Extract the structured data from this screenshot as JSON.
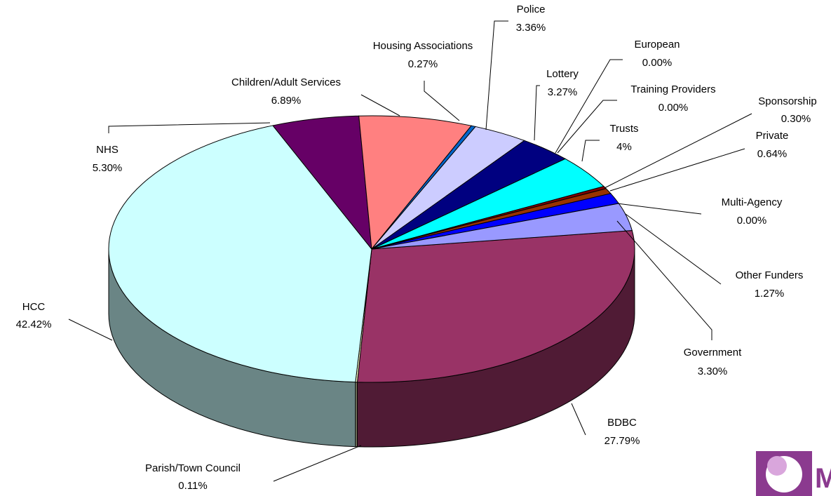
{
  "chart_data": {
    "type": "pie3d",
    "categories": [
      "BDBC",
      "Parish/Town Council",
      "HCC",
      "NHS",
      "Children/Adult Services",
      "Housing Associations",
      "Police",
      "Lottery",
      "European",
      "Training Providers",
      "Trusts",
      "Sponsorship",
      "Private",
      "Multi-Agency",
      "Other Funders",
      "Government"
    ],
    "values": [
      27.79,
      0.11,
      42.42,
      5.3,
      6.89,
      0.27,
      3.36,
      3.27,
      0,
      0,
      4,
      0.3,
      0.64,
      0,
      1.27,
      3.3
    ],
    "value_labels": [
      "27.79%",
      "0.11%",
      "42.42%",
      "5.30%",
      "6.89%",
      "0.27%",
      "3.36%",
      "3.27%",
      "0.00%",
      "0.00%",
      "4%",
      "0.30%",
      "0.64%",
      "0.00%",
      "1.27%",
      "3.30%"
    ],
    "colors": [
      "#993366",
      "#ffffcc",
      "#ccffff",
      "#660066",
      "#ff8080",
      "#0066cc",
      "#ccccff",
      "#000080",
      "#ff00ff",
      "#ffff00",
      "#00ffff",
      "#800000",
      "#993300",
      "#008080",
      "#0000ff",
      "#9999ff"
    ]
  },
  "logo_text": "M"
}
